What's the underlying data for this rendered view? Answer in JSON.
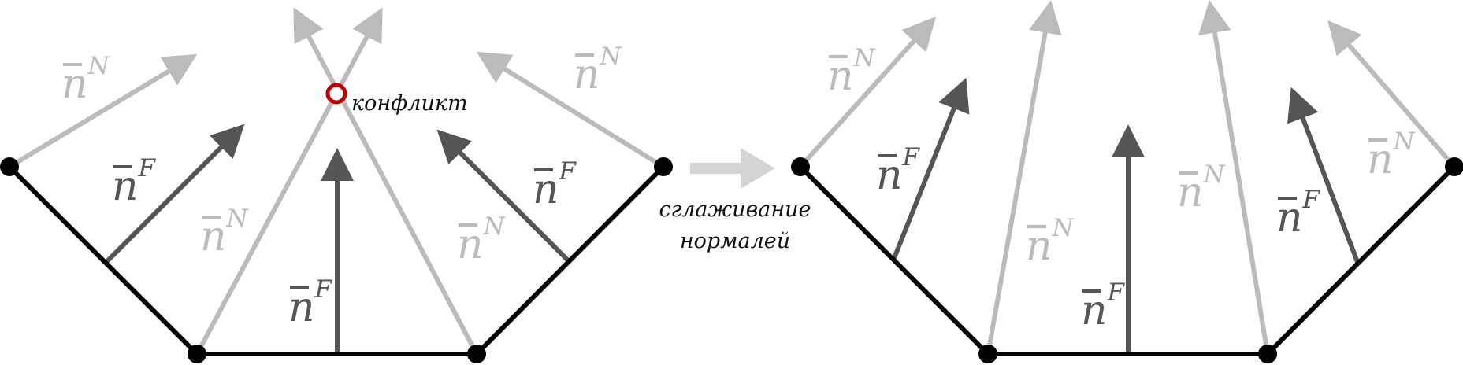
{
  "colors": {
    "edge": "#000000",
    "face_normal": "#555555",
    "vertex_normal": "#bbbbbb",
    "conflict": "#c00000",
    "arrow": "#d4d4d4"
  },
  "symbols": {
    "n": "n",
    "face_sup": "F",
    "vertex_sup": "N"
  },
  "conflict_label": "конфликт",
  "transition": {
    "line1": "сглаживание",
    "line2": "нормалей"
  }
}
